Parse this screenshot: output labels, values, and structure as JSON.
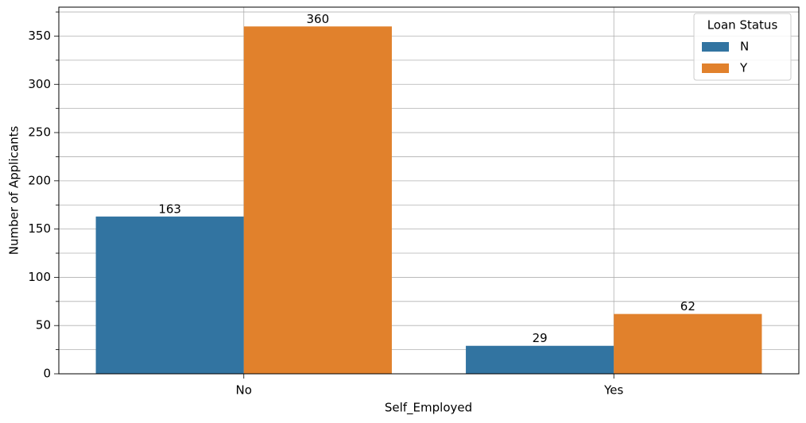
{
  "chart_data": {
    "type": "bar",
    "x_label": "Self_Employed",
    "y_label": "Number of Applicants",
    "categories": [
      "No",
      "Yes"
    ],
    "legend_title": "Loan Status",
    "legend_position": "upper right",
    "series": [
      {
        "name": "N",
        "color": "#3274a1",
        "values": [
          163,
          29
        ]
      },
      {
        "name": "Y",
        "color": "#e1812c",
        "values": [
          360,
          62
        ]
      }
    ],
    "ylim": [
      0,
      380
    ],
    "yticks": [
      0,
      50,
      100,
      150,
      200,
      250,
      300,
      350
    ],
    "minor_yticks": [
      25,
      75,
      125,
      175,
      225,
      275,
      325,
      375
    ],
    "grid": true
  }
}
